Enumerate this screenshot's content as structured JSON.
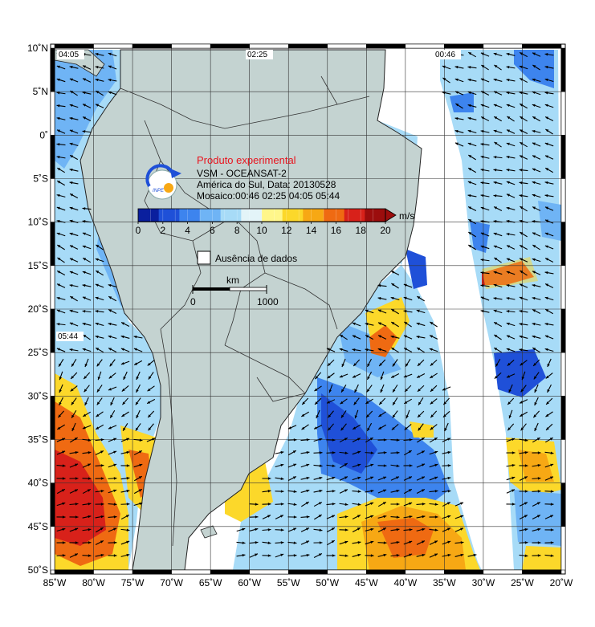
{
  "map": {
    "info": {
      "title": "Produto experimental",
      "lines": [
        "VSM - OCEANSAT-2",
        "América do Sul, Data: 20130528",
        "Mosaico:00:46 02:25 04:05 05:44"
      ]
    },
    "colorbar": {
      "unit": "m/s",
      "ticks": [
        "0",
        "2",
        "4",
        "6",
        "8",
        "10",
        "12",
        "14",
        "16",
        "18",
        "20"
      ],
      "colors": [
        "#0a1f9e",
        "#1f50d8",
        "#3d84ee",
        "#6fb4f5",
        "#a7dbf7",
        "#e3f4f8",
        "#fff68a",
        "#fcd82a",
        "#f7a814",
        "#ef6a12",
        "#d8211a",
        "#9c0d0d"
      ]
    },
    "legend": {
      "no_data": "Ausência de dados"
    },
    "scale": {
      "unit": "km",
      "start": "0",
      "end": "1000"
    },
    "pass_times": [
      "04:05",
      "02:25",
      "00:46",
      "05:44"
    ],
    "lat_labels": [
      "10˚N",
      "5˚N",
      "0˚",
      "5˚S",
      "10˚S",
      "15˚S",
      "20˚S",
      "25˚S",
      "30˚S",
      "35˚S",
      "40˚S",
      "45˚S",
      "50˚S"
    ],
    "lon_labels": [
      "85˚W",
      "80˚W",
      "75˚W",
      "70˚W",
      "65˚W",
      "60˚W",
      "55˚W",
      "50˚W",
      "45˚W",
      "40˚W",
      "35˚W",
      "30˚W",
      "25˚W",
      "20˚W"
    ],
    "colors": {
      "land": "#c4d3d1",
      "ocean_bg": "#cfeaf4",
      "no_data": "#ffffff",
      "border": "#3d3d3d",
      "coast": "#222222"
    }
  }
}
